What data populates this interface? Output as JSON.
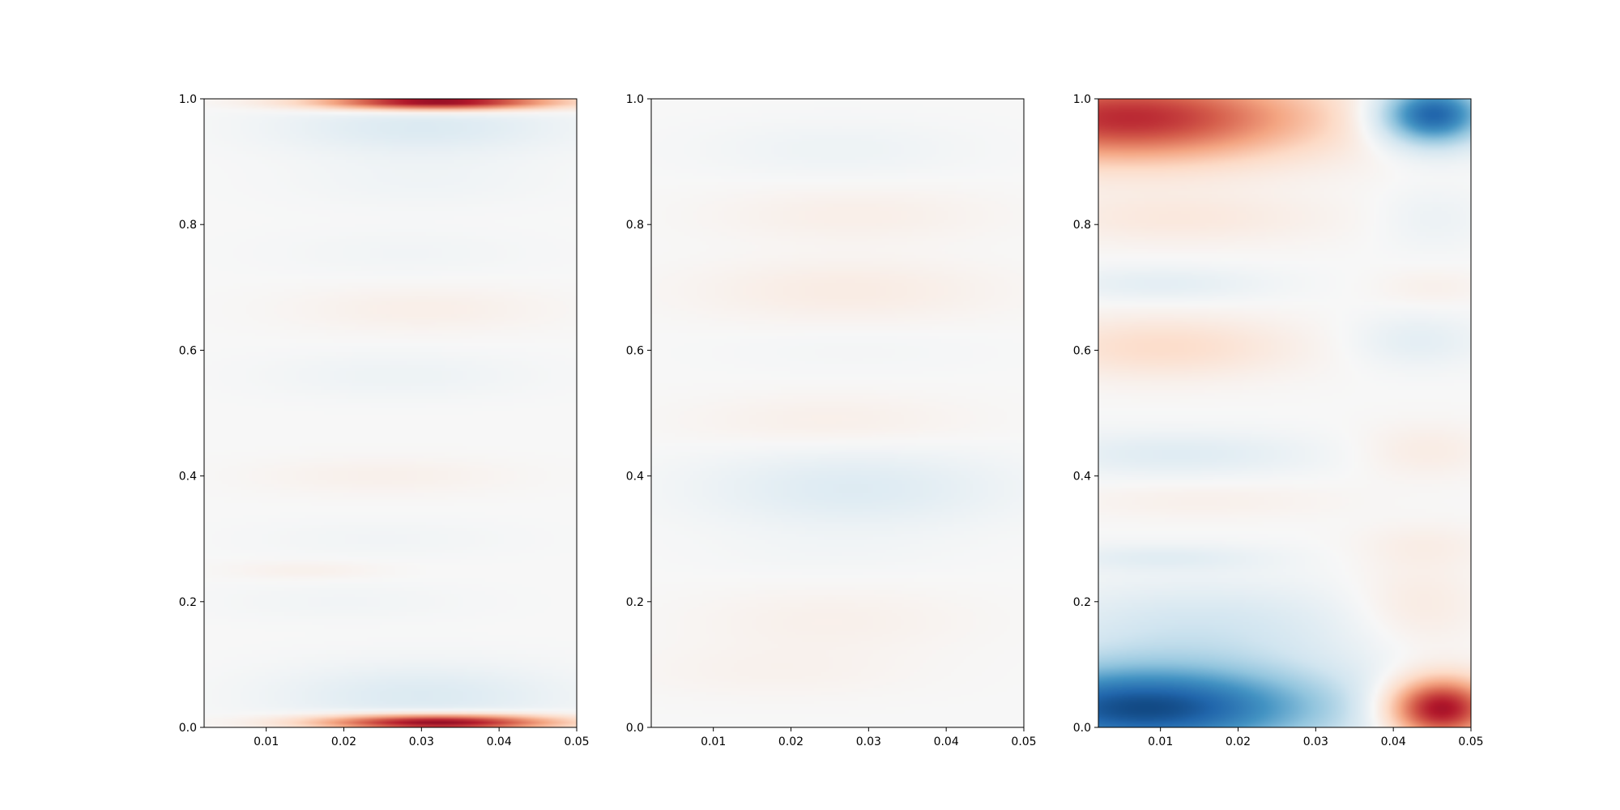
{
  "chart_data": [
    {
      "type": "heatmap",
      "title": "",
      "xlabel": "",
      "ylabel": "",
      "xlim": [
        0.002,
        0.05
      ],
      "ylim": [
        0.0,
        1.0
      ],
      "xticks": [
        0.01,
        0.02,
        0.03,
        0.04,
        0.05
      ],
      "xtick_labels": [
        "0.01",
        "0.02",
        "0.03",
        "0.04",
        "0.05"
      ],
      "yticks": [
        0.0,
        0.2,
        0.4,
        0.6,
        0.8,
        1.0
      ],
      "ytick_labels": [
        "0.0",
        "0.2",
        "0.4",
        "0.6",
        "0.8",
        "1.0"
      ],
      "colormap": "RdBu_r",
      "color_range": [
        -1,
        1
      ],
      "grid": false,
      "features": [
        {
          "x": 0.032,
          "y": 0.995,
          "sx": 0.011,
          "sy": 0.009,
          "value": 0.95
        },
        {
          "x": 0.032,
          "y": 0.008,
          "sx": 0.011,
          "sy": 0.009,
          "value": 0.95
        },
        {
          "x": 0.03,
          "y": 0.955,
          "sx": 0.013,
          "sy": 0.03,
          "value": -0.14
        },
        {
          "x": 0.03,
          "y": 0.05,
          "sx": 0.013,
          "sy": 0.035,
          "value": -0.14
        },
        {
          "x": 0.03,
          "y": 0.87,
          "sx": 0.012,
          "sy": 0.03,
          "value": -0.04
        },
        {
          "x": 0.028,
          "y": 0.755,
          "sx": 0.012,
          "sy": 0.025,
          "value": -0.03
        },
        {
          "x": 0.03,
          "y": 0.665,
          "sx": 0.012,
          "sy": 0.025,
          "value": 0.06
        },
        {
          "x": 0.027,
          "y": 0.56,
          "sx": 0.012,
          "sy": 0.025,
          "value": -0.05
        },
        {
          "x": 0.025,
          "y": 0.4,
          "sx": 0.012,
          "sy": 0.02,
          "value": 0.05
        },
        {
          "x": 0.025,
          "y": 0.3,
          "sx": 0.012,
          "sy": 0.02,
          "value": -0.03
        },
        {
          "x": 0.015,
          "y": 0.25,
          "sx": 0.007,
          "sy": 0.01,
          "value": 0.05
        },
        {
          "x": 0.02,
          "y": 0.2,
          "sx": 0.012,
          "sy": 0.02,
          "value": -0.03
        }
      ]
    },
    {
      "type": "heatmap",
      "title": "",
      "xlabel": "",
      "ylabel": "",
      "xlim": [
        0.002,
        0.05
      ],
      "ylim": [
        0.0,
        1.0
      ],
      "xticks": [
        0.01,
        0.02,
        0.03,
        0.04,
        0.05
      ],
      "xtick_labels": [
        "0.01",
        "0.02",
        "0.03",
        "0.04",
        "0.05"
      ],
      "yticks": [
        0.0,
        0.2,
        0.4,
        0.6,
        0.8,
        1.0
      ],
      "ytick_labels": [
        "0.0",
        "0.2",
        "0.4",
        "0.6",
        "0.8",
        "1.0"
      ],
      "colormap": "RdBu_r",
      "color_range": [
        -1,
        1
      ],
      "grid": false,
      "features": [
        {
          "x": 0.026,
          "y": 0.92,
          "sx": 0.012,
          "sy": 0.03,
          "value": -0.05
        },
        {
          "x": 0.028,
          "y": 0.815,
          "sx": 0.013,
          "sy": 0.03,
          "value": 0.06
        },
        {
          "x": 0.027,
          "y": 0.695,
          "sx": 0.014,
          "sy": 0.035,
          "value": 0.08
        },
        {
          "x": 0.028,
          "y": 0.6,
          "sx": 0.012,
          "sy": 0.025,
          "value": -0.02
        },
        {
          "x": 0.025,
          "y": 0.485,
          "sx": 0.013,
          "sy": 0.03,
          "value": 0.06
        },
        {
          "x": 0.028,
          "y": 0.38,
          "sx": 0.014,
          "sy": 0.045,
          "value": -0.13
        },
        {
          "x": 0.025,
          "y": 0.275,
          "sx": 0.012,
          "sy": 0.025,
          "value": -0.02
        },
        {
          "x": 0.025,
          "y": 0.17,
          "sx": 0.013,
          "sy": 0.035,
          "value": 0.05
        },
        {
          "x": 0.018,
          "y": 0.09,
          "sx": 0.013,
          "sy": 0.03,
          "value": 0.04
        }
      ]
    },
    {
      "type": "heatmap",
      "title": "",
      "xlabel": "",
      "ylabel": "",
      "xlim": [
        0.002,
        0.05
      ],
      "ylim": [
        0.0,
        1.0
      ],
      "xticks": [
        0.01,
        0.02,
        0.03,
        0.04,
        0.05
      ],
      "xtick_labels": [
        "0.01",
        "0.02",
        "0.03",
        "0.04",
        "0.05"
      ],
      "yticks": [
        0.0,
        0.2,
        0.4,
        0.6,
        0.8,
        1.0
      ],
      "ytick_labels": [
        "0.0",
        "0.2",
        "0.4",
        "0.6",
        "0.8",
        "1.0"
      ],
      "colormap": "RdBu_r",
      "color_range": [
        -1,
        1
      ],
      "grid": false,
      "features": [
        {
          "x": 0.006,
          "y": 0.97,
          "sx": 0.017,
          "sy": 0.05,
          "value": 0.75
        },
        {
          "x": 0.045,
          "y": 0.975,
          "sx": 0.005,
          "sy": 0.035,
          "value": -0.85
        },
        {
          "x": 0.008,
          "y": 0.03,
          "sx": 0.017,
          "sy": 0.05,
          "value": -0.9
        },
        {
          "x": 0.046,
          "y": 0.03,
          "sx": 0.005,
          "sy": 0.035,
          "value": 0.9
        },
        {
          "x": 0.012,
          "y": 0.81,
          "sx": 0.014,
          "sy": 0.03,
          "value": 0.1
        },
        {
          "x": 0.045,
          "y": 0.81,
          "sx": 0.005,
          "sy": 0.035,
          "value": -0.06
        },
        {
          "x": 0.01,
          "y": 0.705,
          "sx": 0.01,
          "sy": 0.02,
          "value": -0.1
        },
        {
          "x": 0.045,
          "y": 0.7,
          "sx": 0.005,
          "sy": 0.02,
          "value": 0.05
        },
        {
          "x": 0.01,
          "y": 0.605,
          "sx": 0.012,
          "sy": 0.035,
          "value": 0.18
        },
        {
          "x": 0.043,
          "y": 0.615,
          "sx": 0.006,
          "sy": 0.03,
          "value": -0.1
        },
        {
          "x": 0.012,
          "y": 0.435,
          "sx": 0.013,
          "sy": 0.025,
          "value": -0.12
        },
        {
          "x": 0.044,
          "y": 0.44,
          "sx": 0.006,
          "sy": 0.03,
          "value": 0.08
        },
        {
          "x": 0.015,
          "y": 0.36,
          "sx": 0.013,
          "sy": 0.02,
          "value": 0.05
        },
        {
          "x": 0.01,
          "y": 0.27,
          "sx": 0.01,
          "sy": 0.015,
          "value": -0.1
        },
        {
          "x": 0.044,
          "y": 0.29,
          "sx": 0.006,
          "sy": 0.025,
          "value": 0.06
        },
        {
          "x": 0.015,
          "y": 0.16,
          "sx": 0.015,
          "sy": 0.05,
          "value": -0.18
        },
        {
          "x": 0.043,
          "y": 0.19,
          "sx": 0.006,
          "sy": 0.05,
          "value": 0.1
        }
      ]
    }
  ]
}
